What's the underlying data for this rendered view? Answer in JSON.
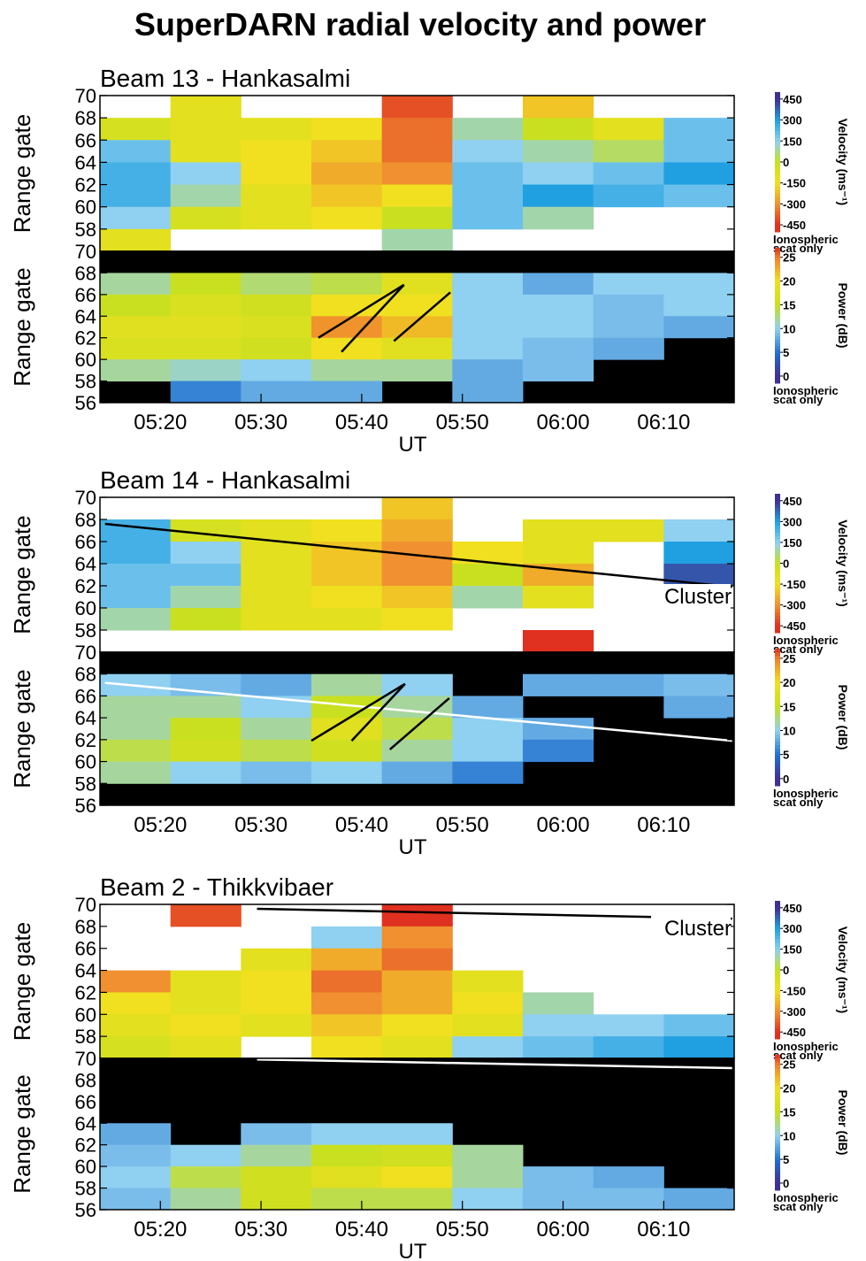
{
  "title": "SuperDARN radial velocity and power",
  "chart_data": [
    {
      "type": "heatmap",
      "title": "Beam 13 - Hankasalmi",
      "ylabel": "Range gate",
      "background": "#ffffff",
      "xlim": [
        314,
        377
      ],
      "ylim": [
        56,
        70
      ],
      "yticks": [
        58,
        60,
        62,
        64,
        66,
        68,
        70
      ],
      "x": [
        317.5,
        324.5,
        331.5,
        338.5,
        345.5,
        352.5,
        359.5,
        366.5,
        373.5
      ],
      "gates": [
        69,
        67,
        65,
        63,
        61,
        59,
        57
      ],
      "z": [
        [
          null,
          -100,
          null,
          null,
          -400,
          null,
          -200,
          null,
          null
        ],
        [
          -50,
          -100,
          -100,
          -150,
          -350,
          100,
          0,
          -100,
          200
        ],
        [
          200,
          -100,
          -150,
          -200,
          -350,
          150,
          100,
          50,
          200
        ],
        [
          250,
          150,
          -150,
          -250,
          -300,
          200,
          150,
          200,
          300
        ],
        [
          250,
          100,
          -100,
          -200,
          -150,
          200,
          300,
          250,
          200
        ],
        [
          150,
          -50,
          -100,
          -150,
          0,
          200,
          100,
          null,
          null
        ],
        [
          -100,
          null,
          null,
          null,
          100,
          null,
          null,
          null,
          null
        ]
      ],
      "colorbar": {
        "label": "Velocity (ms⁻¹)",
        "lim": [
          -500,
          500
        ],
        "ticks": [
          450,
          300,
          150,
          0,
          -150,
          -300,
          -450
        ],
        "note": [
          "Ionospheric",
          "scat only"
        ],
        "stops": [
          [
            -450,
            "#e03020"
          ],
          [
            -300,
            "#f09030"
          ],
          [
            -150,
            "#f0e020"
          ],
          [
            0,
            "#c8e020"
          ],
          [
            150,
            "#90d0f0"
          ],
          [
            300,
            "#20a0e0"
          ],
          [
            450,
            "#403090"
          ]
        ]
      }
    },
    {
      "type": "heatmap",
      "ylabel": "Range gate",
      "xlabel": "UT",
      "background": "#000000",
      "xlim": [
        314,
        377
      ],
      "ylim": [
        56,
        70
      ],
      "yticks": [
        56,
        58,
        60,
        62,
        64,
        66,
        68,
        70
      ],
      "xticks": [
        {
          "value": 320,
          "label": "05:20"
        },
        {
          "value": 330,
          "label": "05:30"
        },
        {
          "value": 340,
          "label": "05:40"
        },
        {
          "value": 350,
          "label": "05:50"
        },
        {
          "value": 360,
          "label": "06:00"
        },
        {
          "value": 370,
          "label": "06:10"
        }
      ],
      "x": [
        317.5,
        324.5,
        331.5,
        338.5,
        345.5,
        352.5,
        359.5,
        366.5,
        373.5
      ],
      "gates": [
        69,
        67,
        65,
        63,
        61,
        59,
        57
      ],
      "z": [
        [
          null,
          null,
          null,
          null,
          null,
          null,
          null,
          null,
          null
        ],
        [
          12,
          15,
          13,
          14,
          18,
          10,
          8,
          10,
          10
        ],
        [
          15,
          17,
          16,
          20,
          20,
          10,
          10,
          9,
          10
        ],
        [
          18,
          18,
          17,
          24,
          22,
          10,
          10,
          9,
          8
        ],
        [
          17,
          17,
          16,
          20,
          18,
          10,
          9,
          8,
          null
        ],
        [
          12,
          11,
          10,
          12,
          12,
          8,
          9,
          null,
          null
        ],
        [
          null,
          6,
          8,
          8,
          null,
          8,
          null,
          null,
          null
        ]
      ],
      "lines": [
        {
          "color": "#000000",
          "x": [
            335.7,
            344.2
          ],
          "y": [
            62.0,
            66.9
          ]
        },
        {
          "color": "#000000",
          "x": [
            338.0,
            344.2
          ],
          "y": [
            60.7,
            66.9
          ]
        },
        {
          "color": "#000000",
          "x": [
            343.2,
            348.8
          ],
          "y": [
            61.7,
            66.2
          ]
        }
      ],
      "colorbar": {
        "label": "Power (dB)",
        "lim": [
          -1.5,
          27
        ],
        "ticks": [
          25,
          20,
          15,
          10,
          5,
          0
        ],
        "note": [
          "Ionospheric",
          "scat only"
        ],
        "stops": [
          [
            0,
            "#403090"
          ],
          [
            5,
            "#2070d0"
          ],
          [
            10,
            "#90d0f0"
          ],
          [
            15,
            "#c8e020"
          ],
          [
            20,
            "#f0e020"
          ],
          [
            25,
            "#f08030"
          ],
          [
            27,
            "#e03020"
          ]
        ]
      }
    },
    {
      "type": "heatmap",
      "title": "Beam 14 - Hankasalmi",
      "ylabel": "Range gate",
      "background": "#ffffff",
      "annotation": "Cluster",
      "xlim": [
        314,
        377
      ],
      "ylim": [
        56,
        70
      ],
      "yticks": [
        58,
        60,
        62,
        64,
        66,
        68,
        70
      ],
      "x": [
        317.5,
        324.5,
        331.5,
        338.5,
        345.5,
        352.5,
        359.5,
        366.5,
        373.5
      ],
      "gates": [
        69,
        67,
        65,
        63,
        61,
        59,
        57
      ],
      "z": [
        [
          null,
          null,
          null,
          null,
          -200,
          null,
          null,
          null,
          null
        ],
        [
          250,
          -50,
          -100,
          -150,
          -250,
          null,
          -100,
          -100,
          150
        ],
        [
          250,
          150,
          -100,
          -200,
          -300,
          -150,
          -100,
          null,
          300
        ],
        [
          200,
          200,
          -100,
          -200,
          -300,
          0,
          -250,
          null,
          400
        ],
        [
          200,
          100,
          -100,
          -150,
          -200,
          100,
          -100,
          null,
          null
        ],
        [
          100,
          0,
          -100,
          -100,
          -150,
          null,
          null,
          null,
          null
        ],
        [
          null,
          null,
          null,
          null,
          null,
          null,
          -450,
          null,
          null
        ]
      ],
      "lines": [
        {
          "color": "#000000",
          "x": [
            314.5,
            376.8
          ],
          "y": [
            67.6,
            61.9
          ]
        }
      ],
      "colorbar": {
        "label": "Velocity (ms⁻¹)",
        "lim": [
          -500,
          500
        ],
        "ticks": [
          450,
          300,
          150,
          0,
          -150,
          -300,
          -450
        ],
        "note": [
          "Ionospheric",
          "scat only"
        ],
        "stops": [
          [
            -450,
            "#e03020"
          ],
          [
            -300,
            "#f09030"
          ],
          [
            -150,
            "#f0e020"
          ],
          [
            0,
            "#c8e020"
          ],
          [
            150,
            "#90d0f0"
          ],
          [
            300,
            "#20a0e0"
          ],
          [
            450,
            "#403090"
          ]
        ]
      }
    },
    {
      "type": "heatmap",
      "ylabel": "Range gate",
      "xlabel": "UT",
      "background": "#000000",
      "xlim": [
        314,
        377
      ],
      "ylim": [
        56,
        70
      ],
      "yticks": [
        56,
        58,
        60,
        62,
        64,
        66,
        68,
        70
      ],
      "xticks": [
        {
          "value": 320,
          "label": "05:20"
        },
        {
          "value": 330,
          "label": "05:30"
        },
        {
          "value": 340,
          "label": "05:40"
        },
        {
          "value": 350,
          "label": "05:50"
        },
        {
          "value": 360,
          "label": "06:00"
        },
        {
          "value": 370,
          "label": "06:10"
        }
      ],
      "x": [
        317.5,
        324.5,
        331.5,
        338.5,
        345.5,
        352.5,
        359.5,
        366.5,
        373.5
      ],
      "gates": [
        69,
        67,
        65,
        63,
        61,
        59,
        57
      ],
      "z": [
        [
          null,
          null,
          null,
          null,
          null,
          null,
          null,
          null,
          null
        ],
        [
          10,
          9,
          8,
          12,
          10,
          null,
          8,
          8,
          9
        ],
        [
          12,
          12,
          10,
          15,
          12,
          8,
          null,
          null,
          8
        ],
        [
          12,
          15,
          12,
          18,
          14,
          10,
          8,
          null,
          null
        ],
        [
          14,
          16,
          14,
          16,
          12,
          10,
          6,
          null,
          null
        ],
        [
          12,
          10,
          9,
          10,
          8,
          6,
          null,
          null,
          null
        ],
        [
          null,
          null,
          null,
          null,
          null,
          null,
          null,
          null,
          null
        ]
      ],
      "lines": [
        {
          "color": "#ffffff",
          "x": [
            314.5,
            376.8
          ],
          "y": [
            67.2,
            61.9
          ]
        },
        {
          "color": "#000000",
          "x": [
            335.0,
            344.3
          ],
          "y": [
            61.9,
            67.1
          ]
        },
        {
          "color": "#000000",
          "x": [
            339.0,
            344.3
          ],
          "y": [
            61.9,
            67.1
          ]
        },
        {
          "color": "#000000",
          "x": [
            342.8,
            348.7
          ],
          "y": [
            61.1,
            65.8
          ]
        }
      ],
      "colorbar": {
        "label": "Power (dB)",
        "lim": [
          -1.5,
          27
        ],
        "ticks": [
          25,
          20,
          15,
          10,
          5,
          0
        ],
        "note": [
          "Ionospheric",
          "scat only"
        ],
        "stops": [
          [
            0,
            "#403090"
          ],
          [
            5,
            "#2070d0"
          ],
          [
            10,
            "#90d0f0"
          ],
          [
            15,
            "#c8e020"
          ],
          [
            20,
            "#f0e020"
          ],
          [
            25,
            "#f08030"
          ],
          [
            27,
            "#e03020"
          ]
        ]
      }
    },
    {
      "type": "heatmap",
      "title": "Beam 2 - Thikkvibaer",
      "ylabel": "Range gate",
      "background": "#ffffff",
      "annotation": "Cluster",
      "xlim": [
        314,
        377
      ],
      "ylim": [
        56,
        70
      ],
      "yticks": [
        58,
        60,
        62,
        64,
        66,
        68,
        70
      ],
      "x": [
        317.5,
        324.5,
        331.5,
        338.5,
        345.5,
        352.5,
        359.5,
        366.5,
        373.5
      ],
      "gates": [
        69,
        67,
        65,
        63,
        61,
        59,
        57
      ],
      "z": [
        [
          null,
          -400,
          null,
          null,
          -450,
          null,
          null,
          null,
          null
        ],
        [
          null,
          null,
          null,
          150,
          -300,
          null,
          null,
          null,
          null
        ],
        [
          null,
          null,
          -100,
          -250,
          -350,
          null,
          null,
          null,
          null
        ],
        [
          -300,
          -100,
          -150,
          -350,
          -250,
          -100,
          null,
          null,
          null
        ],
        [
          -150,
          -100,
          -150,
          -300,
          -250,
          -150,
          100,
          null,
          null
        ],
        [
          -100,
          -150,
          -100,
          -200,
          -150,
          -100,
          150,
          150,
          200
        ],
        [
          -50,
          -100,
          null,
          -150,
          -100,
          150,
          200,
          250,
          300
        ]
      ],
      "lines": [
        {
          "color": "#000000",
          "x": [
            329.6,
            376.8
          ],
          "y": [
            69.6,
            68.7
          ]
        }
      ],
      "colorbar": {
        "label": "Velocity (ms⁻¹)",
        "lim": [
          -500,
          500
        ],
        "ticks": [
          450,
          300,
          150,
          0,
          -150,
          -300,
          -450
        ],
        "note": [
          "Ionospheric",
          "scat only"
        ],
        "stops": [
          [
            -450,
            "#e03020"
          ],
          [
            -300,
            "#f09030"
          ],
          [
            -150,
            "#f0e020"
          ],
          [
            0,
            "#c8e020"
          ],
          [
            150,
            "#90d0f0"
          ],
          [
            300,
            "#20a0e0"
          ],
          [
            450,
            "#403090"
          ]
        ]
      }
    },
    {
      "type": "heatmap",
      "ylabel": "Range gate",
      "xlabel": "UT",
      "background": "#000000",
      "xlim": [
        314,
        377
      ],
      "ylim": [
        56,
        70
      ],
      "yticks": [
        56,
        58,
        60,
        62,
        64,
        66,
        68,
        70
      ],
      "xticks": [
        {
          "value": 320,
          "label": "05:20"
        },
        {
          "value": 330,
          "label": "05:30"
        },
        {
          "value": 340,
          "label": "05:40"
        },
        {
          "value": 350,
          "label": "05:50"
        },
        {
          "value": 360,
          "label": "06:00"
        },
        {
          "value": 370,
          "label": "06:10"
        }
      ],
      "x": [
        317.5,
        324.5,
        331.5,
        338.5,
        345.5,
        352.5,
        359.5,
        366.5,
        373.5
      ],
      "gates": [
        69,
        67,
        65,
        63,
        61,
        59,
        57
      ],
      "z": [
        [
          null,
          null,
          null,
          null,
          null,
          null,
          null,
          null,
          null
        ],
        [
          null,
          null,
          null,
          null,
          null,
          null,
          null,
          null,
          null
        ],
        [
          null,
          null,
          null,
          null,
          null,
          null,
          null,
          null,
          null
        ],
        [
          8,
          null,
          9,
          10,
          10,
          null,
          null,
          null,
          null
        ],
        [
          9,
          10,
          12,
          15,
          16,
          12,
          null,
          null,
          null
        ],
        [
          10,
          14,
          16,
          18,
          20,
          12,
          9,
          8,
          null
        ],
        [
          9,
          12,
          16,
          14,
          14,
          10,
          9,
          9,
          8
        ]
      ],
      "lines": [
        {
          "color": "#ffffff",
          "x": [
            329.6,
            376.8
          ],
          "y": [
            69.9,
            69.1
          ]
        }
      ],
      "colorbar": {
        "label": "Power (dB)",
        "lim": [
          -1.5,
          27
        ],
        "ticks": [
          25,
          20,
          15,
          10,
          5,
          0
        ],
        "note": [
          "Ionospheric",
          "scat only"
        ],
        "stops": [
          [
            0,
            "#403090"
          ],
          [
            5,
            "#2070d0"
          ],
          [
            10,
            "#90d0f0"
          ],
          [
            15,
            "#c8e020"
          ],
          [
            20,
            "#f0e020"
          ],
          [
            25,
            "#f08030"
          ],
          [
            27,
            "#e03020"
          ]
        ]
      }
    }
  ]
}
